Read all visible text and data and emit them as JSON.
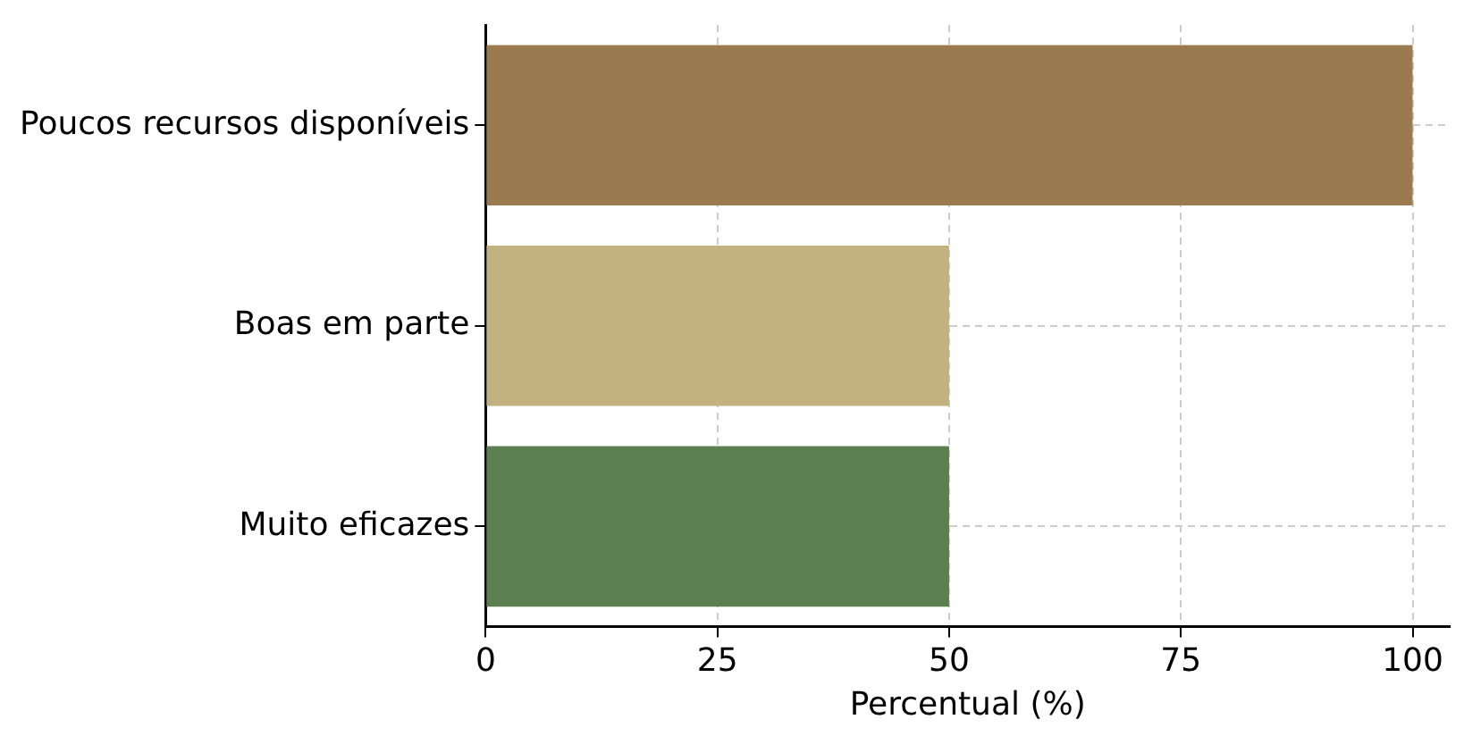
{
  "chart_data": {
    "type": "bar",
    "orientation": "horizontal",
    "xlabel": "Percentual (%)",
    "categories": [
      "Poucos recursos disponíveis",
      "Boas em parte",
      "Muito eficazes"
    ],
    "values": [
      100,
      50,
      50
    ],
    "colors": [
      "#9a7b4f",
      "#c2b280",
      "#5b7f4f"
    ],
    "xlim": [
      0,
      104
    ],
    "xticks": [
      0,
      25,
      50,
      75,
      100
    ],
    "grid": true,
    "legend": false
  }
}
